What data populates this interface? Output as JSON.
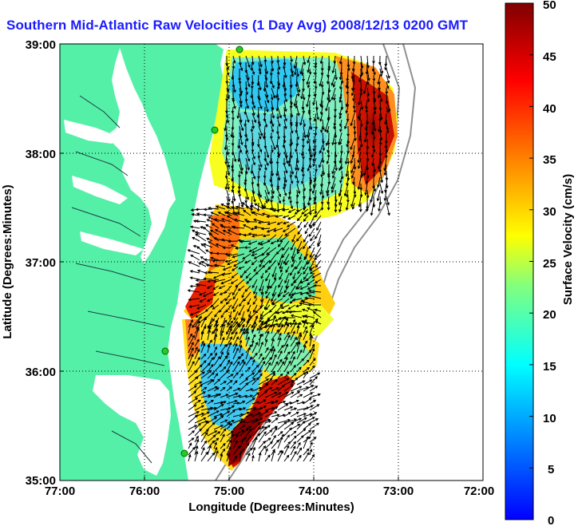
{
  "title": "Southern Mid-Atlantic Raw Velocities (1 Day Avg) 2008/12/13 0200 GMT",
  "map": {
    "xlabel": "Longitude (Degrees:Minutes)",
    "ylabel": "Latitude (Degrees:Minutes)",
    "x_ticks": [
      "77:00",
      "76:00",
      "75:00",
      "74:00",
      "73:00",
      "72:00"
    ],
    "y_ticks": [
      "39:00",
      "38:00",
      "37:00",
      "36:00",
      "35:00"
    ],
    "lon_range": [
      -77,
      -72
    ],
    "lat_range": [
      35,
      39
    ],
    "grid": "dotted",
    "land_color": "#55f0a8",
    "water_color": "#ffffff"
  },
  "colorbar": {
    "label": "Surface Velocity (cm/s)",
    "ticks": [
      "50",
      "45",
      "40",
      "35",
      "30",
      "25",
      "20",
      "15",
      "10",
      "5",
      "0"
    ],
    "range": [
      0,
      50
    ],
    "colormap": "jet"
  }
}
